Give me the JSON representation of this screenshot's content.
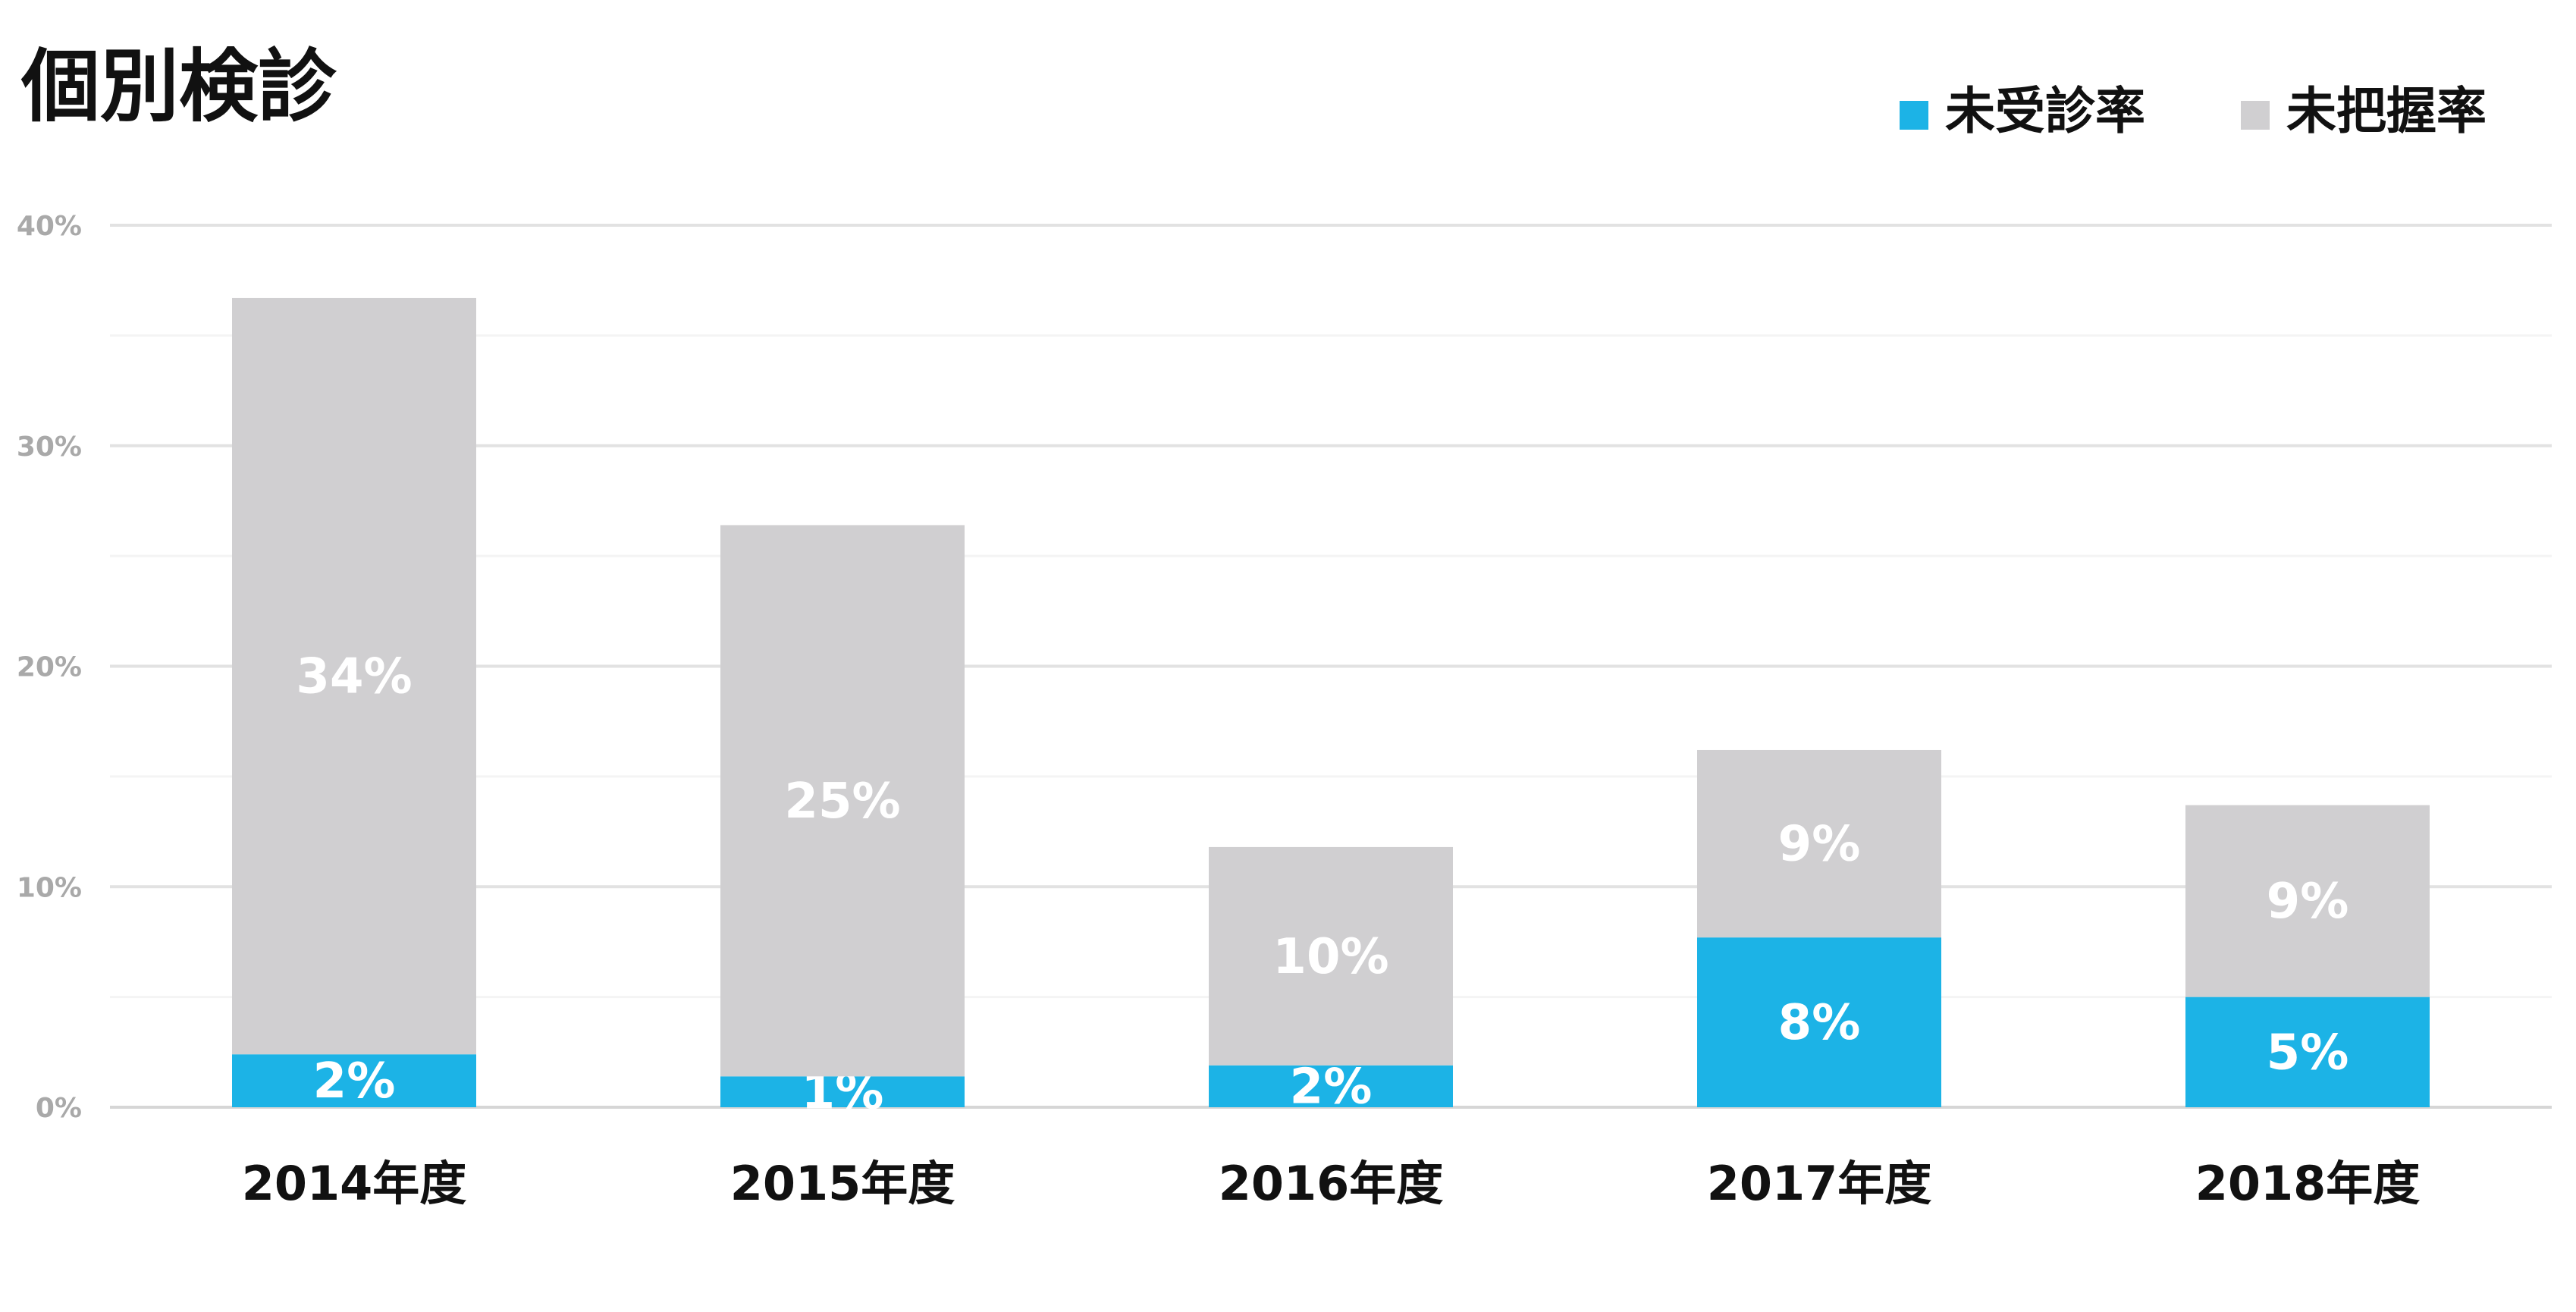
{
  "colors": {
    "uncheck": "#1cb3e6",
    "unknown": "#d0cfd1",
    "grid": "#e2e2e2",
    "minor_grid": "#f4f4f4"
  },
  "chart_data": {
    "type": "bar",
    "stacked": true,
    "title": "個別検診",
    "categories": [
      "2014年度",
      "2015年度",
      "2016年度",
      "2017年度",
      "2018年度"
    ],
    "series": [
      {
        "name": "未受診率",
        "color": "#1cb3e6",
        "values": [
          2.4,
          1.4,
          1.9,
          7.7,
          5.0
        ],
        "labels": [
          "2%",
          "1%",
          "2%",
          "8%",
          "5%"
        ]
      },
      {
        "name": "未把握率",
        "color": "#d0cfd1",
        "values": [
          34.3,
          25.0,
          9.9,
          8.5,
          8.7
        ],
        "labels": [
          "34%",
          "25%",
          "10%",
          "9%",
          "9%"
        ]
      }
    ],
    "ylim": [
      0,
      40
    ],
    "yticks": [
      "0%",
      "10%",
      "20%",
      "30%",
      "40%"
    ],
    "grid": true,
    "legend": "top-right"
  }
}
